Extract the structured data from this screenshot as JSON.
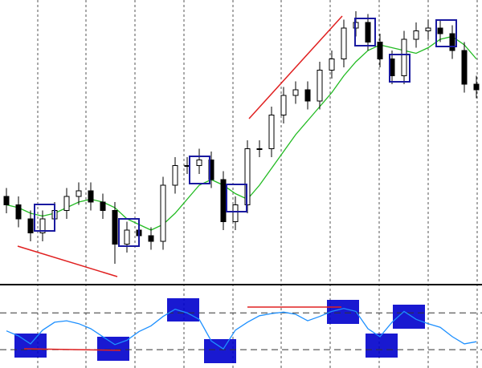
{
  "chart_data": [
    {
      "type": "candlestick",
      "open": [
        30,
        27,
        22,
        17,
        22,
        25,
        30,
        32,
        28,
        25,
        13,
        18,
        16,
        14,
        34,
        41,
        41,
        43,
        36,
        21,
        27,
        47,
        47,
        59,
        66,
        68,
        64,
        75,
        79,
        90,
        92,
        85,
        79,
        73,
        86,
        89,
        90,
        88,
        82,
        70
      ],
      "high": [
        33,
        30,
        25,
        25,
        28,
        33,
        35,
        35,
        31,
        28,
        21,
        21,
        19,
        37,
        44,
        44,
        47,
        46,
        39,
        30,
        50,
        50,
        62,
        69,
        71,
        71,
        78,
        82,
        93,
        96,
        95,
        88,
        82,
        89,
        92,
        93,
        93,
        91,
        85,
        73
      ],
      "low": [
        24,
        19,
        14,
        14,
        19,
        22,
        27,
        25,
        22,
        6,
        10,
        13,
        11,
        11,
        31,
        38,
        38,
        33,
        18,
        18,
        24,
        44,
        44,
        56,
        63,
        61,
        61,
        72,
        76,
        87,
        82,
        76,
        70,
        70,
        83,
        86,
        85,
        79,
        67,
        65
      ],
      "close": [
        27,
        22,
        17,
        22,
        25,
        30,
        32,
        28,
        25,
        13,
        18,
        16,
        14,
        34,
        41,
        41,
        43,
        36,
        21,
        27,
        47,
        47,
        59,
        66,
        68,
        64,
        75,
        79,
        90,
        92,
        85,
        79,
        73,
        86,
        89,
        90,
        88,
        82,
        70,
        68
      ],
      "up_color": "#ffffff",
      "down_color": "#000000",
      "series": [
        {
          "color": "#22bb22",
          "values": [
            27,
            26,
            24,
            23,
            24,
            26,
            28,
            29,
            28,
            26,
            22,
            20,
            18,
            20,
            24,
            29,
            34,
            36,
            34,
            31,
            29,
            34,
            40,
            46,
            52,
            57,
            62,
            67,
            73,
            78,
            82,
            84,
            83,
            82,
            81,
            83,
            86,
            87,
            84,
            79
          ]
        }
      ],
      "ylim": [
        0,
        100
      ]
    },
    {
      "type": "line",
      "color": "#1e90ff",
      "values": [
        47,
        40,
        29,
        48,
        59,
        61,
        57,
        50,
        39,
        28,
        34,
        46,
        54,
        67,
        77,
        72,
        63,
        33,
        22,
        48,
        59,
        68,
        71,
        73,
        70,
        61,
        67,
        74,
        78,
        74,
        50,
        39,
        59,
        74,
        63,
        57,
        52,
        39,
        29,
        32
      ],
      "levels": [
        72,
        21
      ],
      "ylim": [
        0,
        100
      ]
    }
  ]
}
